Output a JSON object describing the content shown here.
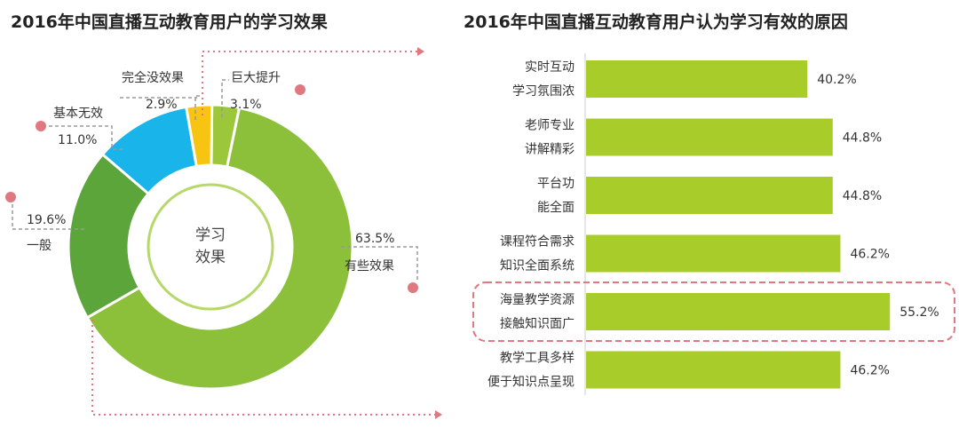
{
  "chart_data": [
    {
      "type": "pie",
      "title": "2016年中国直播互动教育用户的学习效果",
      "center_label": [
        "学习",
        "效果"
      ],
      "slices": [
        {
          "label": "巨大提升",
          "value": 3.1,
          "value_text": "3.1%",
          "color": "#9dc73b"
        },
        {
          "label": "有些效果",
          "value": 63.5,
          "value_text": "63.5%",
          "color": "#8cc03a"
        },
        {
          "label": "一般",
          "value": 19.6,
          "value_text": "19.6%",
          "color": "#5ca53a"
        },
        {
          "label": "基本无效",
          "value": 11.0,
          "value_text": "11.0%",
          "color": "#19b4ea"
        },
        {
          "label": "完全没效果",
          "value": 2.9,
          "value_text": "2.9%",
          "color": "#f7c411"
        }
      ]
    },
    {
      "type": "bar",
      "orientation": "horizontal",
      "title": "2016年中国直播互动教育用户认为学习有效的原因",
      "categories": [
        [
          "实时互动",
          "学习氛围浓"
        ],
        [
          "老师专业",
          "讲解精彩"
        ],
        [
          "平台功",
          "能全面"
        ],
        [
          "课程符合需求",
          "知识全面系统"
        ],
        [
          "海量教学资源",
          "接触知识面广"
        ],
        [
          "教学工具多样",
          "便于知识点呈现"
        ]
      ],
      "values": [
        40.2,
        44.8,
        44.8,
        46.2,
        55.2,
        46.2
      ],
      "value_labels": [
        "40.2%",
        "44.8%",
        "44.8%",
        "46.2%",
        "55.2%",
        "46.2%"
      ],
      "highlighted_index": 4,
      "bar_color": "#a8cd2a",
      "highlight_color": "#e07880"
    }
  ]
}
